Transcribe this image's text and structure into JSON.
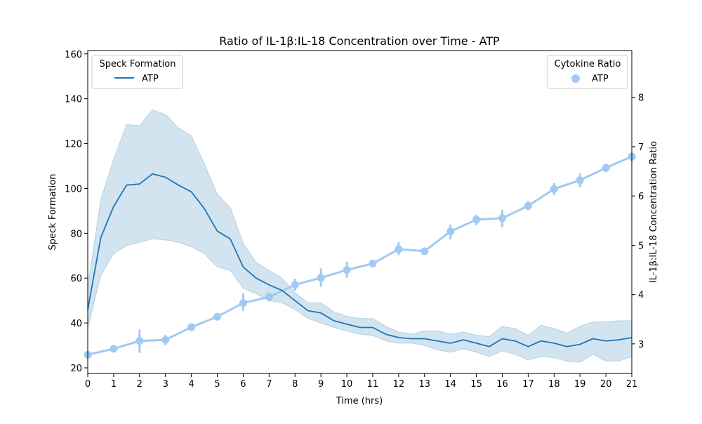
{
  "chart_data": {
    "type": "line",
    "title": "Ratio of IL-1β:IL-18 Concentration over Time - ATP",
    "xlabel": "Time (hrs)",
    "ylabel": "Speck Formation",
    "ylabel_right": "IL-1β:IL-18 Concentration Ratio",
    "xlim": [
      0,
      21
    ],
    "ylim": [
      17.5,
      161.5
    ],
    "ylim_right": [
      2.4,
      8.95
    ],
    "x_ticks": [
      "0",
      "1",
      "2",
      "3",
      "4",
      "5",
      "6",
      "7",
      "8",
      "9",
      "10",
      "11",
      "12",
      "13",
      "14",
      "15",
      "16",
      "17",
      "18",
      "19",
      "20",
      "21"
    ],
    "y_ticks": [
      "20",
      "40",
      "60",
      "80",
      "100",
      "120",
      "140",
      "160"
    ],
    "y_right_ticks": [
      "3",
      "4",
      "5",
      "6",
      "7",
      "8"
    ],
    "grid": false,
    "legends": [
      {
        "title": "Speck Formation",
        "entries": [
          "ATP"
        ],
        "placement": "upper-left"
      },
      {
        "title": "Cytokine Ratio",
        "entries": [
          "ATP"
        ],
        "placement": "upper-right"
      }
    ],
    "series": [
      {
        "name": "ATP",
        "axis": "left",
        "kind": "line-with-band",
        "color": "#1f77b4",
        "band_color": "#1f77b4",
        "x": [
          0,
          0.5,
          1,
          1.5,
          2,
          2.5,
          3,
          3.5,
          4,
          4.5,
          5,
          5.5,
          6,
          6.5,
          7,
          7.5,
          8,
          8.5,
          9,
          9.5,
          10,
          10.5,
          11,
          11.5,
          12,
          12.5,
          13,
          13.5,
          14,
          14.5,
          15,
          15.5,
          16,
          16.5,
          17,
          17.5,
          18,
          18.5,
          19,
          19.5,
          20,
          20.5,
          21
        ],
        "values": [
          46,
          78,
          92,
          101.5,
          102,
          106.5,
          105,
          101.5,
          98.5,
          91,
          81,
          77.5,
          65,
          60,
          57,
          54.5,
          50,
          45.5,
          44.5,
          41,
          39.5,
          38,
          38,
          35,
          33.5,
          33,
          33,
          32,
          31,
          32.5,
          31,
          29.5,
          33,
          32,
          29.5,
          32,
          31,
          29.5,
          30.5,
          33,
          32,
          32.5,
          33.5
        ],
        "lower": [
          38,
          61,
          71,
          74.5,
          76,
          77.5,
          77,
          76,
          74,
          71,
          65,
          63.5,
          55.5,
          53,
          50,
          49,
          46,
          42,
          40,
          38,
          36.5,
          35,
          34.5,
          32,
          31,
          31,
          30,
          28,
          27,
          28.5,
          27,
          25,
          27.5,
          26,
          23.5,
          25,
          24.5,
          23,
          22.5,
          26,
          23,
          23,
          25
        ],
        "upper": [
          56,
          95,
          113,
          128.5,
          128,
          135,
          133,
          127,
          123.5,
          111,
          97.5,
          91.5,
          75.5,
          67,
          63.5,
          60,
          53.5,
          49,
          49,
          45,
          43,
          42,
          42,
          38.5,
          36,
          35,
          36.5,
          36.5,
          35,
          36,
          34.5,
          34,
          38.5,
          37.5,
          34.5,
          39,
          37.5,
          35.5,
          38.5,
          40.5,
          40.5,
          41,
          41
        ]
      },
      {
        "name": "ATP",
        "axis": "right",
        "kind": "pointplot",
        "color": "#a1c9f4",
        "x": [
          0,
          1,
          2,
          3,
          4,
          5,
          6,
          7,
          8,
          9,
          10,
          11,
          12,
          13,
          14,
          15,
          16,
          17,
          18,
          19,
          20,
          21
        ],
        "values": [
          2.78,
          2.9,
          3.06,
          3.08,
          3.34,
          3.55,
          3.83,
          3.95,
          4.2,
          4.34,
          4.5,
          4.63,
          4.92,
          4.88,
          5.28,
          5.52,
          5.55,
          5.8,
          6.14,
          6.32,
          6.57,
          6.8
        ],
        "err_low": [
          2.74,
          2.86,
          2.82,
          2.97,
          3.31,
          3.52,
          3.67,
          3.86,
          4.08,
          4.16,
          4.34,
          4.55,
          4.8,
          4.86,
          5.12,
          5.41,
          5.37,
          5.71,
          6.02,
          6.18,
          6.48,
          6.7
        ],
        "err_high": [
          2.82,
          2.94,
          3.29,
          3.18,
          3.38,
          3.58,
          4.02,
          4.04,
          4.32,
          4.53,
          4.66,
          4.7,
          5.06,
          4.9,
          5.42,
          5.62,
          5.72,
          5.9,
          6.26,
          6.46,
          6.65,
          6.88
        ]
      }
    ]
  }
}
